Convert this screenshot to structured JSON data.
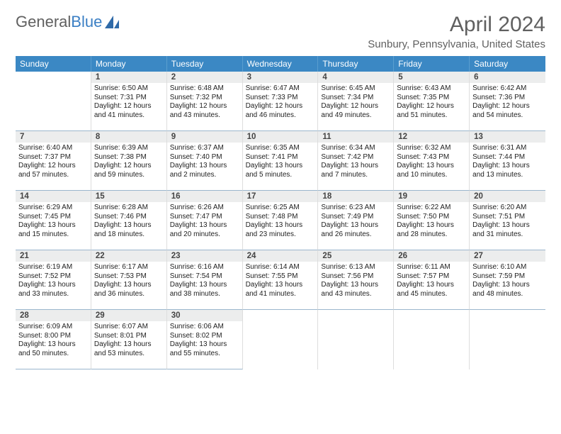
{
  "brand": {
    "text1": "General",
    "text2": "Blue"
  },
  "title": "April 2024",
  "location": "Sunbury, Pennsylvania, United States",
  "colors": {
    "header_bg": "#3b88c4",
    "accent": "#3b7fc4",
    "gray_text": "#606060"
  },
  "weekdays": [
    "Sunday",
    "Monday",
    "Tuesday",
    "Wednesday",
    "Thursday",
    "Friday",
    "Saturday"
  ],
  "first_weekday_offset": 1,
  "days": [
    {
      "n": 1,
      "sunrise": "6:50 AM",
      "sunset": "7:31 PM",
      "daylight": "12 hours and 41 minutes."
    },
    {
      "n": 2,
      "sunrise": "6:48 AM",
      "sunset": "7:32 PM",
      "daylight": "12 hours and 43 minutes."
    },
    {
      "n": 3,
      "sunrise": "6:47 AM",
      "sunset": "7:33 PM",
      "daylight": "12 hours and 46 minutes."
    },
    {
      "n": 4,
      "sunrise": "6:45 AM",
      "sunset": "7:34 PM",
      "daylight": "12 hours and 49 minutes."
    },
    {
      "n": 5,
      "sunrise": "6:43 AM",
      "sunset": "7:35 PM",
      "daylight": "12 hours and 51 minutes."
    },
    {
      "n": 6,
      "sunrise": "6:42 AM",
      "sunset": "7:36 PM",
      "daylight": "12 hours and 54 minutes."
    },
    {
      "n": 7,
      "sunrise": "6:40 AM",
      "sunset": "7:37 PM",
      "daylight": "12 hours and 57 minutes."
    },
    {
      "n": 8,
      "sunrise": "6:39 AM",
      "sunset": "7:38 PM",
      "daylight": "12 hours and 59 minutes."
    },
    {
      "n": 9,
      "sunrise": "6:37 AM",
      "sunset": "7:40 PM",
      "daylight": "13 hours and 2 minutes."
    },
    {
      "n": 10,
      "sunrise": "6:35 AM",
      "sunset": "7:41 PM",
      "daylight": "13 hours and 5 minutes."
    },
    {
      "n": 11,
      "sunrise": "6:34 AM",
      "sunset": "7:42 PM",
      "daylight": "13 hours and 7 minutes."
    },
    {
      "n": 12,
      "sunrise": "6:32 AM",
      "sunset": "7:43 PM",
      "daylight": "13 hours and 10 minutes."
    },
    {
      "n": 13,
      "sunrise": "6:31 AM",
      "sunset": "7:44 PM",
      "daylight": "13 hours and 13 minutes."
    },
    {
      "n": 14,
      "sunrise": "6:29 AM",
      "sunset": "7:45 PM",
      "daylight": "13 hours and 15 minutes."
    },
    {
      "n": 15,
      "sunrise": "6:28 AM",
      "sunset": "7:46 PM",
      "daylight": "13 hours and 18 minutes."
    },
    {
      "n": 16,
      "sunrise": "6:26 AM",
      "sunset": "7:47 PM",
      "daylight": "13 hours and 20 minutes."
    },
    {
      "n": 17,
      "sunrise": "6:25 AM",
      "sunset": "7:48 PM",
      "daylight": "13 hours and 23 minutes."
    },
    {
      "n": 18,
      "sunrise": "6:23 AM",
      "sunset": "7:49 PM",
      "daylight": "13 hours and 26 minutes."
    },
    {
      "n": 19,
      "sunrise": "6:22 AM",
      "sunset": "7:50 PM",
      "daylight": "13 hours and 28 minutes."
    },
    {
      "n": 20,
      "sunrise": "6:20 AM",
      "sunset": "7:51 PM",
      "daylight": "13 hours and 31 minutes."
    },
    {
      "n": 21,
      "sunrise": "6:19 AM",
      "sunset": "7:52 PM",
      "daylight": "13 hours and 33 minutes."
    },
    {
      "n": 22,
      "sunrise": "6:17 AM",
      "sunset": "7:53 PM",
      "daylight": "13 hours and 36 minutes."
    },
    {
      "n": 23,
      "sunrise": "6:16 AM",
      "sunset": "7:54 PM",
      "daylight": "13 hours and 38 minutes."
    },
    {
      "n": 24,
      "sunrise": "6:14 AM",
      "sunset": "7:55 PM",
      "daylight": "13 hours and 41 minutes."
    },
    {
      "n": 25,
      "sunrise": "6:13 AM",
      "sunset": "7:56 PM",
      "daylight": "13 hours and 43 minutes."
    },
    {
      "n": 26,
      "sunrise": "6:11 AM",
      "sunset": "7:57 PM",
      "daylight": "13 hours and 45 minutes."
    },
    {
      "n": 27,
      "sunrise": "6:10 AM",
      "sunset": "7:59 PM",
      "daylight": "13 hours and 48 minutes."
    },
    {
      "n": 28,
      "sunrise": "6:09 AM",
      "sunset": "8:00 PM",
      "daylight": "13 hours and 50 minutes."
    },
    {
      "n": 29,
      "sunrise": "6:07 AM",
      "sunset": "8:01 PM",
      "daylight": "13 hours and 53 minutes."
    },
    {
      "n": 30,
      "sunrise": "6:06 AM",
      "sunset": "8:02 PM",
      "daylight": "13 hours and 55 minutes."
    }
  ],
  "labels": {
    "sunrise": "Sunrise:",
    "sunset": "Sunset:",
    "daylight": "Daylight:"
  }
}
